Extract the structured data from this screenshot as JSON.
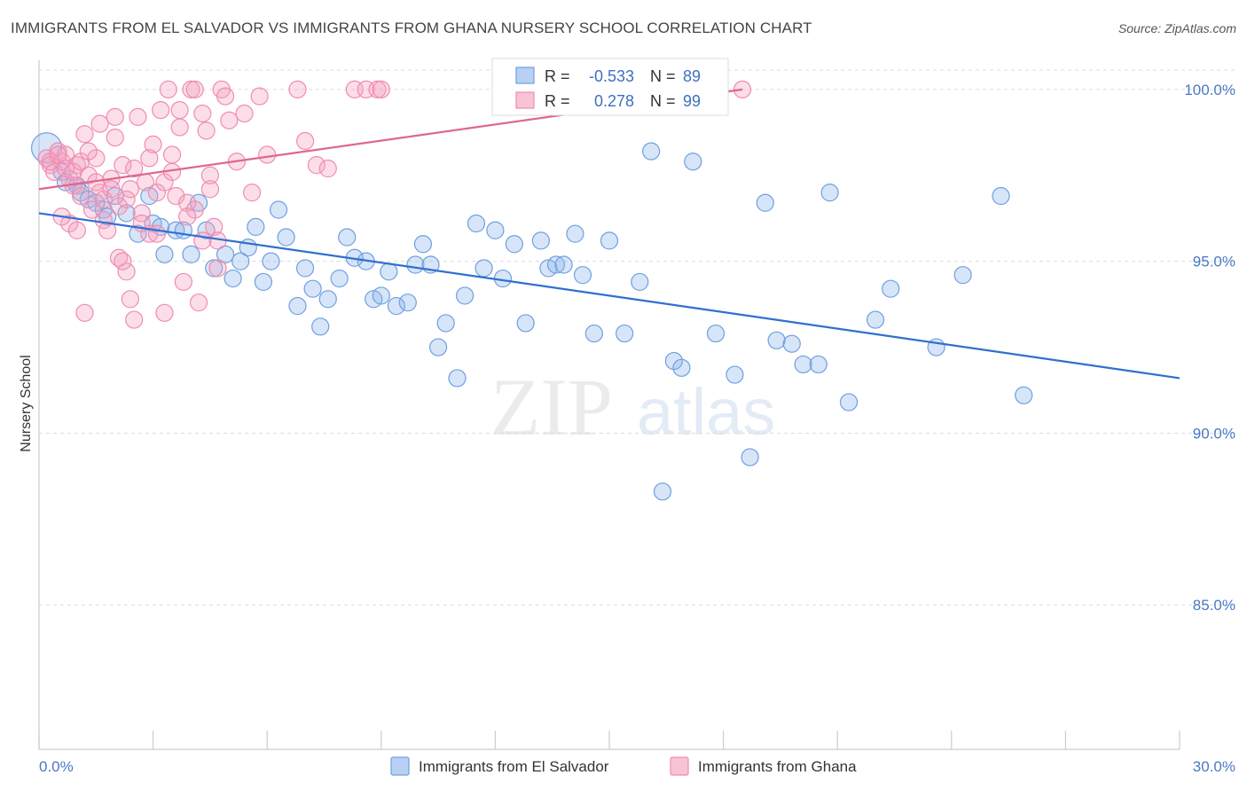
{
  "title": "IMMIGRANTS FROM EL SALVADOR VS IMMIGRANTS FROM GHANA NURSERY SCHOOL CORRELATION CHART",
  "source": "Source: ZipAtlas.com",
  "watermark": {
    "zip": "ZIP",
    "atlas": "atlas"
  },
  "stats_box": {
    "rows": [
      {
        "r_label": "R =",
        "r_value": "-0.533",
        "n_label": "N =",
        "n_value": "89"
      },
      {
        "r_label": "R =",
        "r_value": "0.278",
        "n_label": "N =",
        "n_value": "99"
      }
    ]
  },
  "chart_data": {
    "type": "scatter",
    "title": "IMMIGRANTS FROM EL SALVADOR VS IMMIGRANTS FROM GHANA NURSERY SCHOOL CORRELATION CHART",
    "xlabel": "",
    "ylabel": "Nursery School",
    "xlim": [
      0,
      30
    ],
    "ylim": [
      80.8,
      100.9
    ],
    "x_tick_labels": [
      "0.0%",
      "30.0%"
    ],
    "y_ticks": [
      100,
      95,
      90,
      85
    ],
    "y_tick_labels": [
      "100.0%",
      "95.0%",
      "90.0%",
      "85.0%"
    ],
    "grid": "horizontal dashed",
    "legend_position": "bottom-center",
    "series": [
      {
        "name": "Immigrants from El Salvador",
        "color": "#6f9fe0",
        "line_color": "#2f6fd0",
        "r": -0.533,
        "n": 89,
        "trend": {
          "x": [
            0,
            30
          ],
          "y": [
            96.4,
            91.6
          ]
        },
        "points": [
          [
            0.2,
            98.3
          ],
          [
            0.6,
            97.6
          ],
          [
            0.7,
            97.3
          ],
          [
            1.0,
            97.2
          ],
          [
            1.1,
            97.0
          ],
          [
            1.3,
            96.8
          ],
          [
            1.5,
            96.7
          ],
          [
            1.7,
            96.5
          ],
          [
            1.8,
            96.3
          ],
          [
            2.0,
            96.9
          ],
          [
            2.3,
            96.4
          ],
          [
            2.6,
            95.8
          ],
          [
            2.9,
            96.9
          ],
          [
            3.0,
            96.1
          ],
          [
            3.2,
            96.0
          ],
          [
            3.3,
            95.2
          ],
          [
            3.6,
            95.9
          ],
          [
            3.8,
            95.9
          ],
          [
            4.0,
            95.2
          ],
          [
            4.2,
            96.7
          ],
          [
            4.4,
            95.9
          ],
          [
            4.6,
            94.8
          ],
          [
            4.9,
            95.2
          ],
          [
            5.1,
            94.5
          ],
          [
            5.3,
            95.0
          ],
          [
            5.5,
            95.4
          ],
          [
            5.7,
            96.0
          ],
          [
            5.9,
            94.4
          ],
          [
            6.1,
            95.0
          ],
          [
            6.3,
            96.5
          ],
          [
            6.5,
            95.7
          ],
          [
            6.8,
            93.7
          ],
          [
            7.0,
            94.8
          ],
          [
            7.2,
            94.2
          ],
          [
            7.4,
            93.1
          ],
          [
            7.6,
            93.9
          ],
          [
            7.9,
            94.5
          ],
          [
            8.1,
            95.7
          ],
          [
            8.3,
            95.1
          ],
          [
            8.6,
            95.0
          ],
          [
            8.8,
            93.9
          ],
          [
            9.0,
            94.0
          ],
          [
            9.2,
            94.7
          ],
          [
            9.4,
            93.7
          ],
          [
            9.7,
            93.8
          ],
          [
            9.9,
            94.9
          ],
          [
            10.1,
            95.5
          ],
          [
            10.3,
            94.9
          ],
          [
            10.5,
            92.5
          ],
          [
            10.7,
            93.2
          ],
          [
            11.0,
            91.6
          ],
          [
            11.2,
            94.0
          ],
          [
            11.5,
            96.1
          ],
          [
            11.7,
            94.8
          ],
          [
            12.0,
            95.9
          ],
          [
            12.2,
            94.5
          ],
          [
            12.5,
            95.5
          ],
          [
            12.8,
            93.2
          ],
          [
            13.0,
            99.7
          ],
          [
            13.2,
            95.6
          ],
          [
            13.4,
            94.8
          ],
          [
            13.6,
            94.9
          ],
          [
            13.8,
            94.9
          ],
          [
            14.1,
            95.8
          ],
          [
            14.3,
            94.6
          ],
          [
            14.6,
            92.9
          ],
          [
            15.0,
            95.6
          ],
          [
            15.4,
            92.9
          ],
          [
            15.8,
            94.4
          ],
          [
            16.1,
            98.2
          ],
          [
            16.4,
            88.3
          ],
          [
            16.7,
            92.1
          ],
          [
            16.9,
            91.9
          ],
          [
            17.2,
            97.9
          ],
          [
            17.8,
            92.9
          ],
          [
            18.3,
            91.7
          ],
          [
            18.7,
            89.3
          ],
          [
            19.1,
            96.7
          ],
          [
            19.4,
            92.7
          ],
          [
            19.8,
            92.6
          ],
          [
            20.1,
            92.0
          ],
          [
            20.5,
            92.0
          ],
          [
            20.8,
            97.0
          ],
          [
            21.3,
            90.9
          ],
          [
            22.4,
            94.2
          ],
          [
            22.0,
            93.3
          ],
          [
            23.6,
            92.5
          ],
          [
            24.3,
            94.6
          ],
          [
            25.3,
            96.9
          ],
          [
            25.9,
            91.1
          ]
        ]
      },
      {
        "name": "Immigrants from Ghana",
        "color": "#f08cb0",
        "line_color": "#e0668f",
        "r": 0.278,
        "n": 99,
        "trend": {
          "x": [
            0,
            18.5
          ],
          "y": [
            97.1,
            100.0
          ]
        },
        "points": [
          [
            0.2,
            98.0
          ],
          [
            0.3,
            97.8
          ],
          [
            0.4,
            97.6
          ],
          [
            0.5,
            98.2
          ],
          [
            0.6,
            97.9
          ],
          [
            0.7,
            98.1
          ],
          [
            0.8,
            97.4
          ],
          [
            0.9,
            97.2
          ],
          [
            1.0,
            97.8
          ],
          [
            1.1,
            96.9
          ],
          [
            1.2,
            98.7
          ],
          [
            1.3,
            97.5
          ],
          [
            1.4,
            96.5
          ],
          [
            1.5,
            98.0
          ],
          [
            1.6,
            97.0
          ],
          [
            1.7,
            96.2
          ],
          [
            1.8,
            95.9
          ],
          [
            1.9,
            97.4
          ],
          [
            2.0,
            98.6
          ],
          [
            2.1,
            96.6
          ],
          [
            2.2,
            97.8
          ],
          [
            2.3,
            96.8
          ],
          [
            2.4,
            97.1
          ],
          [
            2.5,
            97.7
          ],
          [
            2.6,
            99.2
          ],
          [
            2.7,
            96.4
          ],
          [
            2.8,
            97.3
          ],
          [
            2.9,
            95.8
          ],
          [
            3.0,
            98.4
          ],
          [
            3.1,
            97.0
          ],
          [
            3.2,
            99.4
          ],
          [
            3.3,
            97.3
          ],
          [
            3.4,
            100.0
          ],
          [
            3.5,
            98.1
          ],
          [
            3.6,
            96.9
          ],
          [
            3.7,
            99.4
          ],
          [
            3.8,
            94.4
          ],
          [
            3.9,
            96.7
          ],
          [
            4.0,
            100.0
          ],
          [
            4.1,
            96.5
          ],
          [
            4.2,
            93.8
          ],
          [
            4.3,
            99.3
          ],
          [
            4.4,
            98.8
          ],
          [
            4.5,
            97.1
          ],
          [
            4.6,
            96.0
          ],
          [
            4.7,
            95.6
          ],
          [
            4.8,
            100.0
          ],
          [
            4.9,
            99.8
          ],
          [
            5.0,
            99.1
          ],
          [
            5.2,
            97.9
          ],
          [
            5.4,
            99.3
          ],
          [
            5.6,
            97.0
          ],
          [
            5.8,
            99.8
          ],
          [
            6.0,
            98.1
          ],
          [
            0.3,
            97.9
          ],
          [
            0.5,
            98.1
          ],
          [
            0.7,
            97.7
          ],
          [
            0.9,
            97.6
          ],
          [
            1.1,
            97.9
          ],
          [
            1.3,
            98.2
          ],
          [
            1.5,
            97.3
          ],
          [
            1.7,
            96.8
          ],
          [
            1.9,
            97.1
          ],
          [
            2.1,
            95.1
          ],
          [
            2.3,
            94.7
          ],
          [
            2.5,
            93.3
          ],
          [
            2.7,
            96.1
          ],
          [
            2.9,
            98.0
          ],
          [
            3.1,
            95.8
          ],
          [
            3.3,
            93.5
          ],
          [
            3.5,
            97.6
          ],
          [
            3.7,
            98.9
          ],
          [
            3.9,
            96.3
          ],
          [
            4.1,
            100.0
          ],
          [
            4.3,
            95.6
          ],
          [
            4.5,
            97.5
          ],
          [
            4.7,
            94.8
          ],
          [
            6.8,
            100.0
          ],
          [
            7.0,
            98.5
          ],
          [
            7.3,
            97.8
          ],
          [
            7.6,
            97.7
          ],
          [
            8.3,
            100.0
          ],
          [
            8.6,
            100.0
          ],
          [
            8.9,
            100.0
          ],
          [
            9.0,
            100.0
          ],
          [
            13.0,
            100.0
          ],
          [
            13.2,
            100.0
          ],
          [
            13.5,
            100.0
          ],
          [
            13.9,
            100.0
          ],
          [
            14.2,
            100.0
          ],
          [
            18.5,
            100.0
          ],
          [
            1.2,
            93.5
          ],
          [
            1.6,
            99.0
          ],
          [
            2.0,
            99.2
          ],
          [
            2.2,
            95.0
          ],
          [
            2.4,
            93.9
          ],
          [
            0.8,
            96.1
          ],
          [
            1.0,
            95.9
          ],
          [
            0.6,
            96.3
          ]
        ]
      }
    ]
  }
}
